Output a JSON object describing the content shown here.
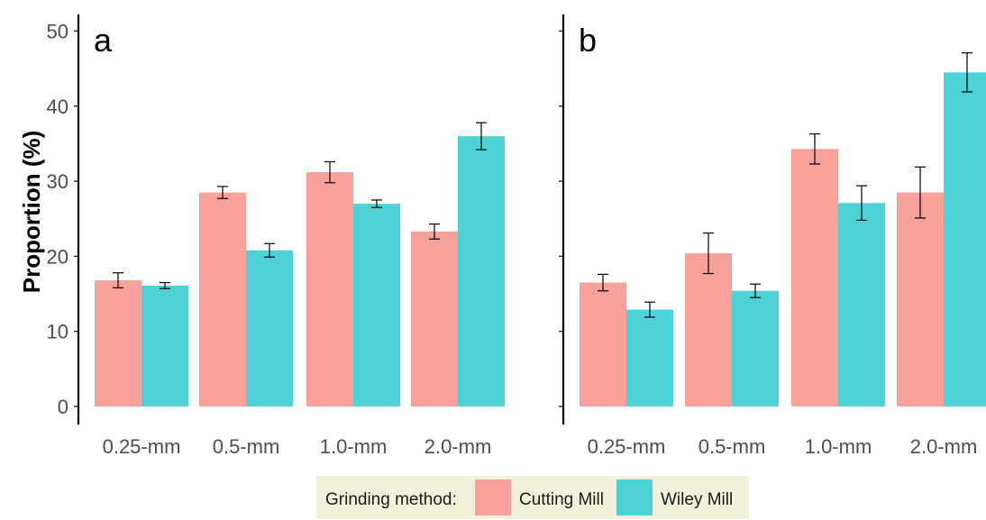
{
  "chart_data": [
    {
      "type": "bar",
      "panel_label": "a",
      "categories": [
        "0.25-mm",
        "0.5-mm",
        "1.0-mm",
        "2.0-mm"
      ],
      "series": [
        {
          "name": "Cutting Mill",
          "values": [
            16.8,
            28.5,
            31.2,
            23.3
          ],
          "errors": [
            1.0,
            0.8,
            1.4,
            1.0
          ]
        },
        {
          "name": "Wiley Mill",
          "values": [
            16.1,
            20.8,
            27.0,
            36.0
          ],
          "errors": [
            0.4,
            0.9,
            0.5,
            1.8
          ]
        }
      ],
      "ylabel": "Proportion (%)",
      "yticks": [
        0,
        10,
        20,
        30,
        40,
        50
      ],
      "ylim": [
        -1,
        52
      ]
    },
    {
      "type": "bar",
      "panel_label": "b",
      "categories": [
        "0.25-mm",
        "0.5-mm",
        "1.0-mm",
        "2.0-mm"
      ],
      "series": [
        {
          "name": "Cutting Mill",
          "values": [
            16.5,
            20.4,
            34.3,
            28.5
          ],
          "errors": [
            1.1,
            2.7,
            2.0,
            3.4
          ]
        },
        {
          "name": "Wiley Mill",
          "values": [
            12.9,
            15.4,
            27.1,
            44.5
          ],
          "errors": [
            1.0,
            0.9,
            2.3,
            2.6
          ]
        }
      ],
      "ylim": [
        -1,
        52
      ]
    }
  ],
  "legend": {
    "title": "Grinding method:",
    "items": [
      {
        "label": "Cutting Mill",
        "color": "#F8A19A"
      },
      {
        "label": "Wiley Mill",
        "color": "#4DD3D6"
      }
    ],
    "position": "bottom-center",
    "background": "#F2F2DC"
  },
  "colors": {
    "cutting_mill": "#F8A19A",
    "wiley_mill": "#4DD3D6",
    "axis": "#000000",
    "tick_text": "#4d4d4d"
  }
}
